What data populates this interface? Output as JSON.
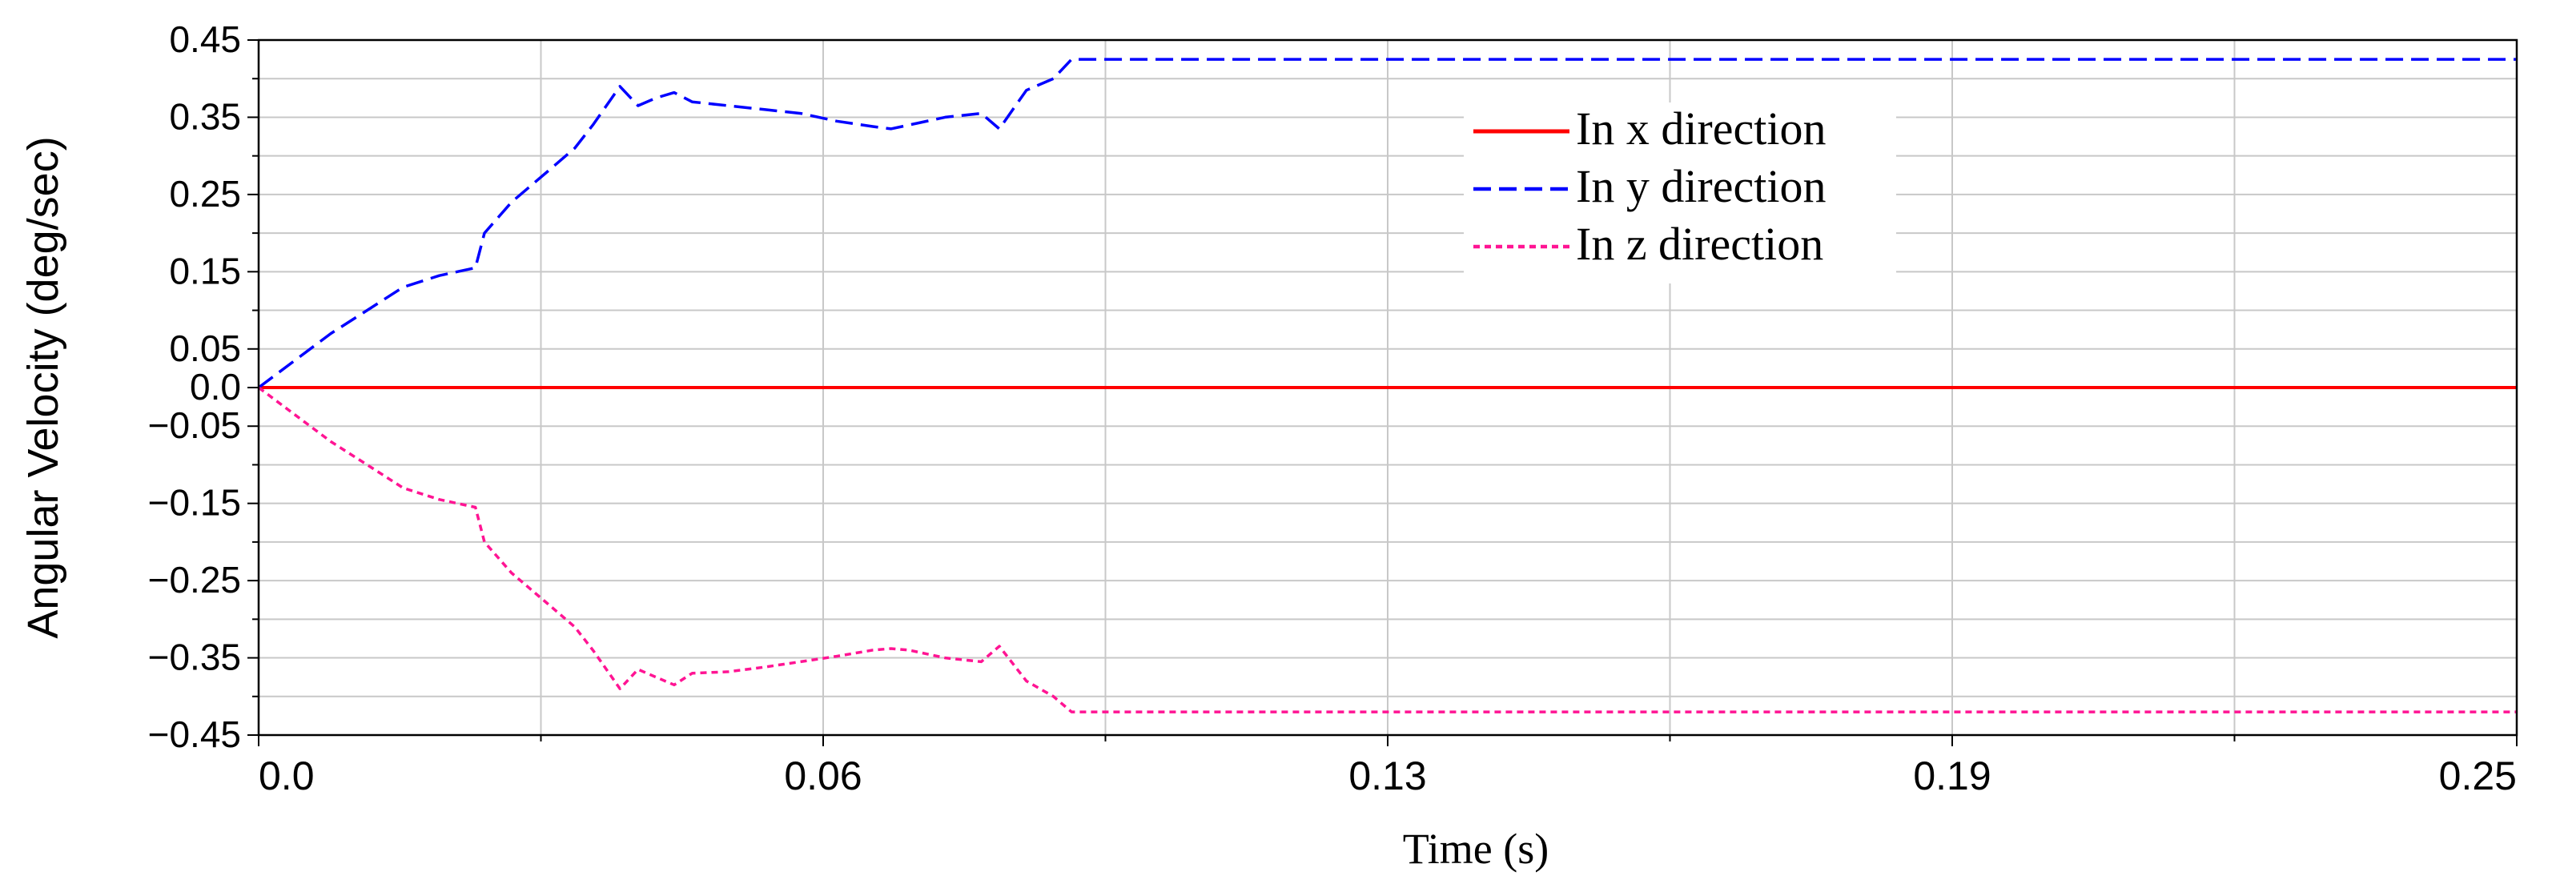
{
  "chart_data": {
    "type": "line",
    "title": "",
    "xlabel": "Time (s)",
    "ylabel": "Angular Velocity (deg/sec)",
    "xlim": [
      0.0,
      0.25
    ],
    "ylim": [
      -0.45,
      0.45
    ],
    "x_ticks": [
      0.0,
      0.0625,
      0.125,
      0.1875,
      0.25
    ],
    "x_tick_labels": [
      "0.0",
      "0.06",
      "0.13",
      "0.19",
      "0.25"
    ],
    "x_minor_ticks": [
      0.03125,
      0.09375,
      0.15625,
      0.21875
    ],
    "y_ticks": [
      0.45,
      0.35,
      0.25,
      0.15,
      0.05,
      0.0,
      -0.05,
      -0.15,
      -0.25,
      -0.35,
      -0.45
    ],
    "y_tick_labels": [
      "0.45",
      "0.35",
      "0.25",
      "0.15",
      "0.05",
      "0.0",
      "−0.05",
      "−0.15",
      "−0.25",
      "−0.35",
      "−0.45"
    ],
    "y_minor_ticks": [
      0.4,
      0.3,
      0.2,
      0.1,
      -0.1,
      -0.2,
      -0.3,
      -0.4
    ],
    "grid": true,
    "legend_position": "upper-center-right",
    "series": [
      {
        "name": "In x direction",
        "color": "#ff0000",
        "style": "solid",
        "x": [
          0.0,
          0.25
        ],
        "y": [
          0.0,
          0.0
        ]
      },
      {
        "name": "In y direction",
        "color": "#0000ff",
        "style": "dashed",
        "x": [
          0.0,
          0.004,
          0.008,
          0.012,
          0.016,
          0.02,
          0.024,
          0.025,
          0.028,
          0.032,
          0.035,
          0.037,
          0.04,
          0.042,
          0.044,
          0.046,
          0.048,
          0.052,
          0.056,
          0.06,
          0.064,
          0.068,
          0.07,
          0.072,
          0.076,
          0.08,
          0.082,
          0.085,
          0.088,
          0.09,
          0.094,
          0.25
        ],
        "y": [
          0.0,
          0.035,
          0.07,
          0.1,
          0.13,
          0.145,
          0.155,
          0.2,
          0.24,
          0.28,
          0.31,
          0.34,
          0.39,
          0.365,
          0.375,
          0.382,
          0.37,
          0.365,
          0.36,
          0.355,
          0.345,
          0.338,
          0.335,
          0.34,
          0.35,
          0.355,
          0.335,
          0.385,
          0.4,
          0.425,
          0.425,
          0.425
        ]
      },
      {
        "name": "In z direction",
        "color": "#ff1493",
        "style": "dotted",
        "x": [
          0.0,
          0.004,
          0.008,
          0.012,
          0.016,
          0.02,
          0.024,
          0.025,
          0.028,
          0.032,
          0.035,
          0.037,
          0.04,
          0.042,
          0.044,
          0.046,
          0.048,
          0.052,
          0.056,
          0.06,
          0.064,
          0.068,
          0.07,
          0.072,
          0.076,
          0.08,
          0.082,
          0.085,
          0.088,
          0.09,
          0.094,
          0.25
        ],
        "y": [
          0.0,
          -0.035,
          -0.07,
          -0.1,
          -0.13,
          -0.145,
          -0.155,
          -0.2,
          -0.24,
          -0.28,
          -0.31,
          -0.34,
          -0.39,
          -0.365,
          -0.375,
          -0.385,
          -0.37,
          -0.368,
          -0.362,
          -0.355,
          -0.348,
          -0.34,
          -0.338,
          -0.34,
          -0.35,
          -0.355,
          -0.335,
          -0.38,
          -0.4,
          -0.42,
          -0.42,
          -0.42
        ]
      }
    ]
  }
}
